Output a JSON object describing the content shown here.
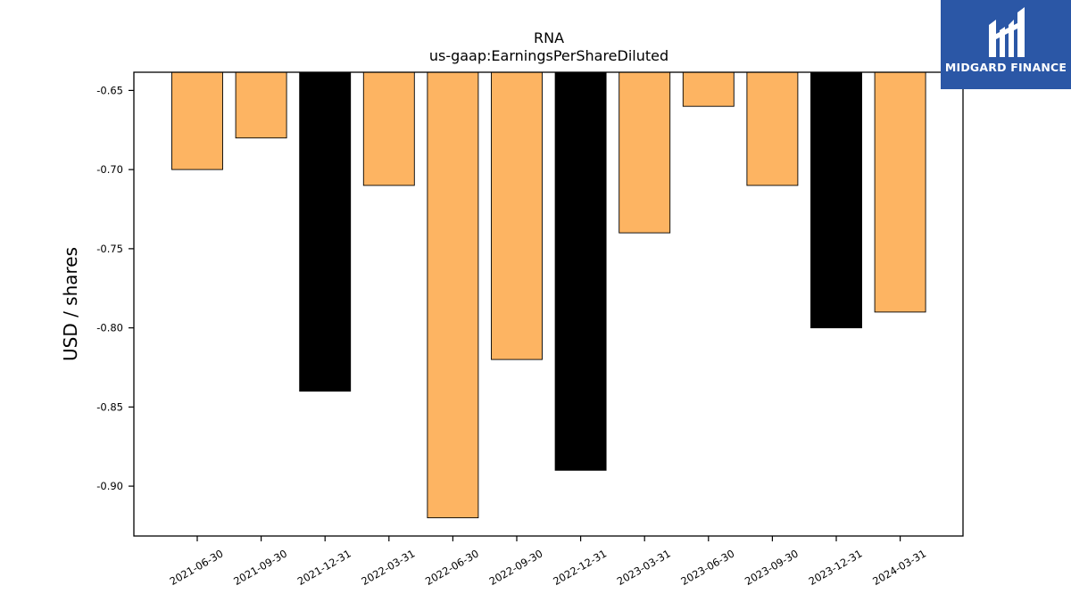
{
  "brand": {
    "name": "MIDGARD FINANCE",
    "bg_color": "#2b57a6"
  },
  "chart_data": {
    "type": "bar",
    "title": "RNA",
    "subtitle": "us-gaap:EarningsPerShareDiluted",
    "xlabel": "",
    "ylabel": "USD / shares",
    "categories": [
      "2021-06-30",
      "2021-09-30",
      "2021-12-31",
      "2022-03-31",
      "2022-06-30",
      "2022-09-30",
      "2022-12-31",
      "2023-03-31",
      "2023-06-30",
      "2023-09-30",
      "2023-12-31",
      "2024-03-31"
    ],
    "values": [
      -0.7,
      -0.68,
      -0.84,
      -0.71,
      -0.92,
      -0.82,
      -0.89,
      -0.74,
      -0.66,
      -0.71,
      -0.8,
      -0.79
    ],
    "bar_colors": [
      "#fdb462",
      "#fdb462",
      "#000000",
      "#fdb462",
      "#fdb462",
      "#fdb462",
      "#000000",
      "#fdb462",
      "#fdb462",
      "#fdb462",
      "#000000",
      "#fdb462"
    ],
    "yticks": [
      "-0.65",
      "-0.70",
      "-0.75",
      "-0.80",
      "-0.85",
      "-0.90"
    ],
    "ytick_values": [
      -0.65,
      -0.7,
      -0.75,
      -0.8,
      -0.85,
      -0.9
    ],
    "ylim": [
      -0.9315,
      -0.6385
    ],
    "grid": false,
    "legend": "none"
  }
}
